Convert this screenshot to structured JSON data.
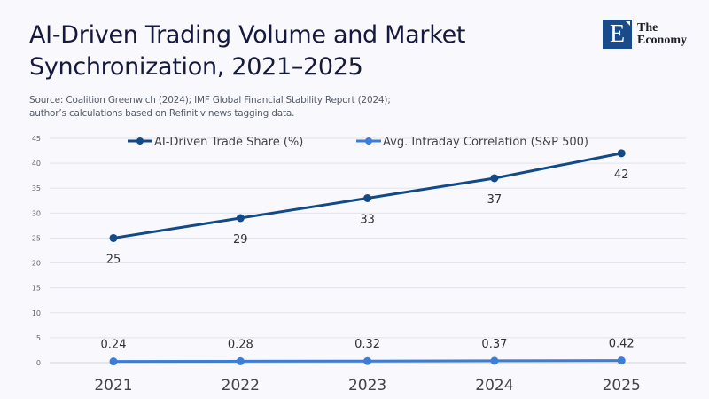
{
  "header": {
    "title": "AI-Driven Trading Volume and Market Synchronization, 2021–2025",
    "source_line1": "Source:  Coalition Greenwich (2024); IMF Global Financial Stability Report (2024);",
    "source_line2": "author’s calculations based on Refinitiv news tagging data."
  },
  "logo": {
    "letter": "E",
    "line1": "The",
    "line2": "Economy",
    "icon": "the-economy-logo"
  },
  "chart_data": {
    "type": "line",
    "title": "AI-Driven Trading Volume and Market Synchronization, 2021–2025",
    "xlabel": "",
    "ylabel": "",
    "categories": [
      "2021",
      "2022",
      "2023",
      "2024",
      "2025"
    ],
    "ylim": [
      0,
      45
    ],
    "yticks": [
      0,
      5,
      10,
      15,
      20,
      25,
      30,
      35,
      40,
      45
    ],
    "grid": true,
    "legend_position": "top-center",
    "series": [
      {
        "name": "AI-Driven Trade Share (%)",
        "values": [
          25,
          29,
          33,
          37,
          42
        ],
        "labels": [
          "25",
          "29",
          "33",
          "37",
          "42"
        ],
        "color": "#114a87",
        "label_position": "below"
      },
      {
        "name": "Avg. Intraday Correlation (S&P 500)",
        "values": [
          0.24,
          0.28,
          0.32,
          0.37,
          0.42
        ],
        "labels": [
          "0.24",
          "0.28",
          "0.32",
          "0.37",
          "0.42"
        ],
        "color": "#3b7dd8",
        "label_position": "above"
      }
    ]
  }
}
